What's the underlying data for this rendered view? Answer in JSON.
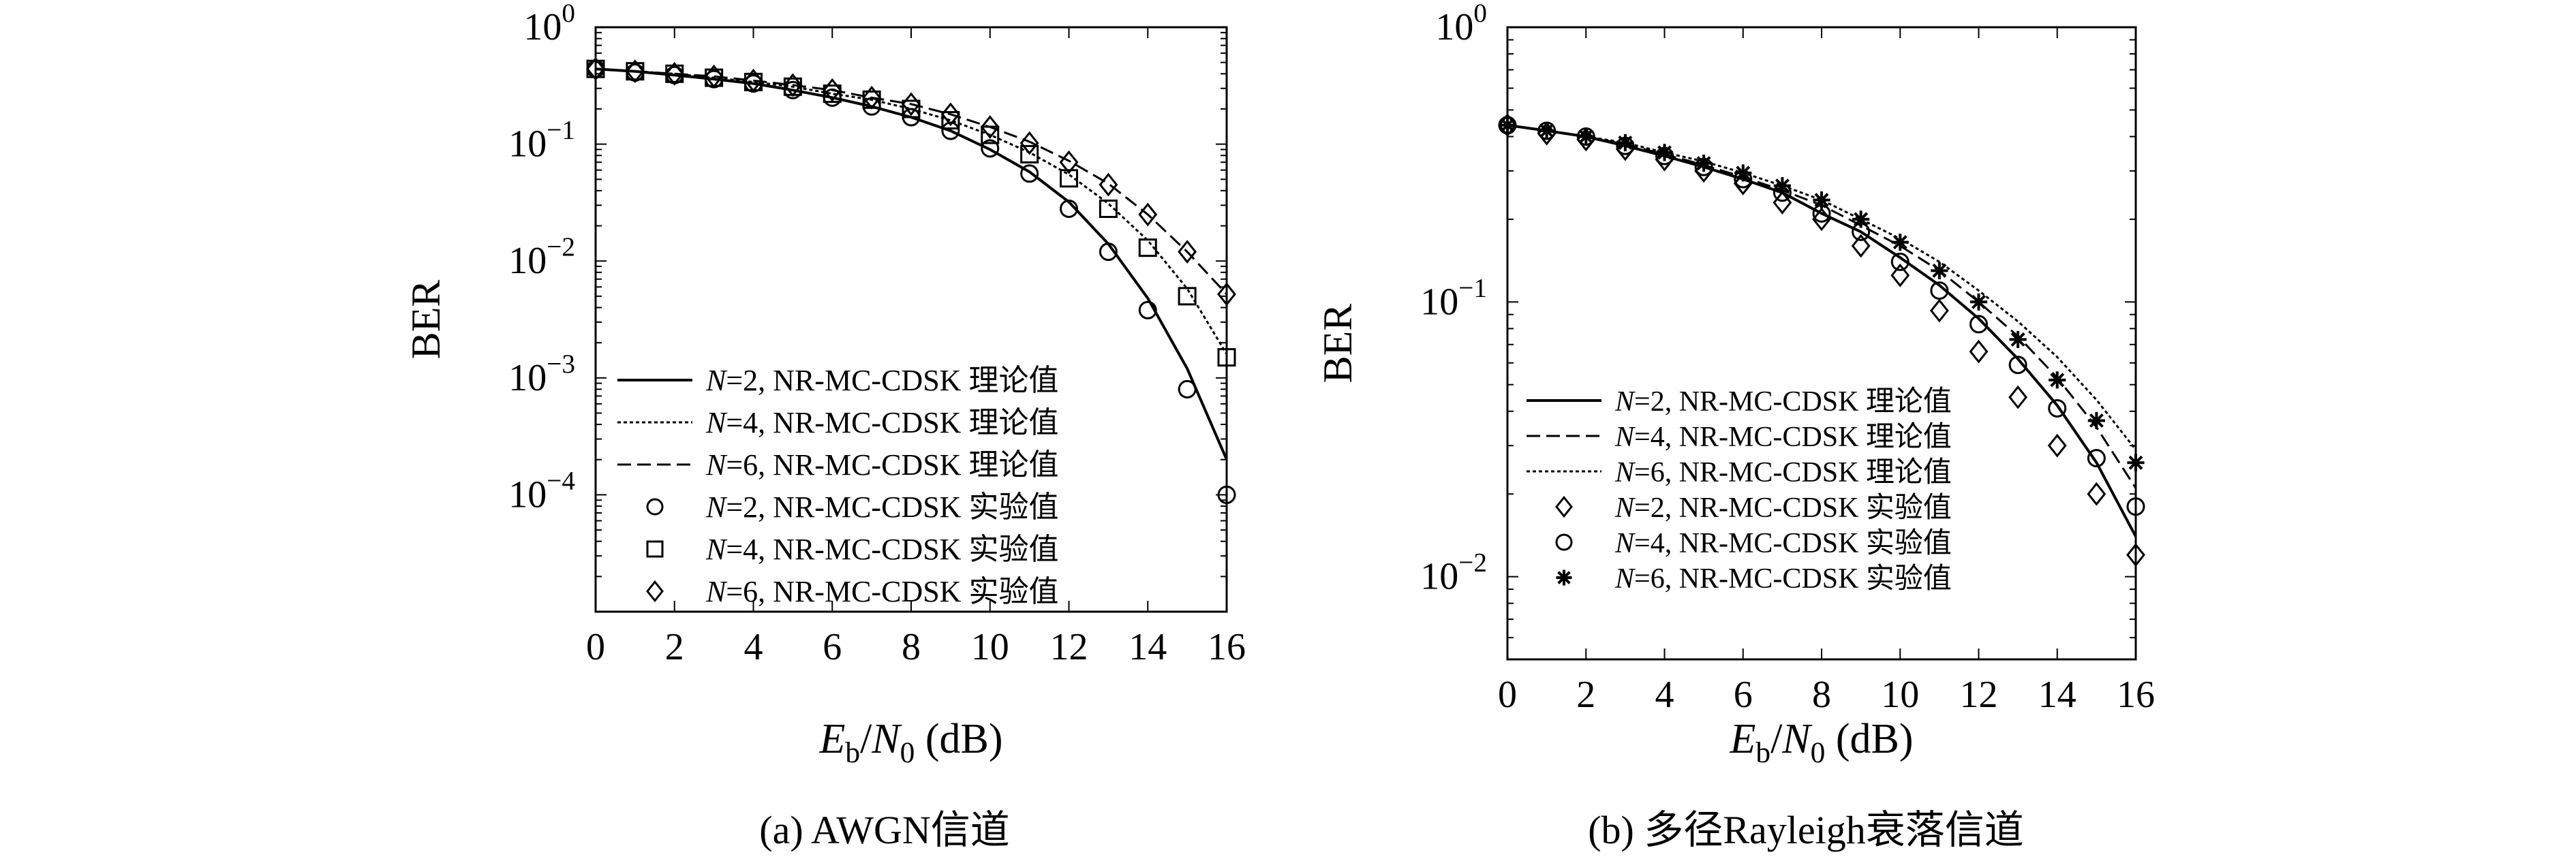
{
  "chart_data": [
    {
      "type": "line",
      "caption": "(a) AWGN信道",
      "ylabel": "BER",
      "xlabel": "Eb/N0 (dB)",
      "xlabel_parts": {
        "E": "E",
        "b": "b",
        "N": "N",
        "zero": "0",
        "unit": " (dB)"
      },
      "xlim": [
        0,
        16
      ],
      "ylim": [
        1e-05,
        1
      ],
      "yscale": "log",
      "x_ticks": [
        0,
        2,
        4,
        6,
        8,
        10,
        12,
        14,
        16
      ],
      "y_tick_labels": [
        {
          "value": 1,
          "base": "10",
          "exp": "0"
        },
        {
          "value": 0.1,
          "base": "10",
          "exp": "−1"
        },
        {
          "value": 0.01,
          "base": "10",
          "exp": "−2"
        },
        {
          "value": 0.001,
          "base": "10",
          "exp": "−3"
        },
        {
          "value": 0.0001,
          "base": "10",
          "exp": "−4"
        }
      ],
      "grid": false,
      "legend_position": "bottom-left",
      "series": [
        {
          "name": "N=2, NR-MC-CDSK 理论值",
          "style": "solid",
          "marker": "none",
          "x": [
            0,
            1,
            2,
            3,
            4,
            5,
            6,
            7,
            8,
            9,
            10,
            11,
            12,
            13,
            14,
            15,
            16
          ],
          "y": [
            0.44,
            0.42,
            0.39,
            0.36,
            0.33,
            0.29,
            0.25,
            0.21,
            0.17,
            0.13,
            0.09,
            0.058,
            0.032,
            0.014,
            0.0048,
            0.0012,
            0.0002
          ]
        },
        {
          "name": "N=4, NR-MC-CDSK 理论值",
          "style": "dotted",
          "marker": "none",
          "x": [
            0,
            1,
            2,
            3,
            4,
            5,
            6,
            7,
            8,
            9,
            10,
            11,
            12,
            13,
            14,
            15,
            16
          ],
          "y": [
            0.44,
            0.42,
            0.4,
            0.37,
            0.34,
            0.31,
            0.27,
            0.24,
            0.2,
            0.16,
            0.12,
            0.085,
            0.055,
            0.031,
            0.015,
            0.0058,
            0.0016
          ]
        },
        {
          "name": "N=6, NR-MC-CDSK 理论值",
          "style": "dashed",
          "marker": "none",
          "x": [
            0,
            1,
            2,
            3,
            4,
            5,
            6,
            7,
            8,
            9,
            10,
            11,
            12,
            13,
            14,
            15,
            16
          ],
          "y": [
            0.44,
            0.42,
            0.4,
            0.38,
            0.35,
            0.32,
            0.29,
            0.25,
            0.22,
            0.18,
            0.14,
            0.105,
            0.072,
            0.046,
            0.025,
            0.012,
            0.0052
          ]
        },
        {
          "name": "N=2, NR-MC-CDSK 实验值",
          "style": "none",
          "marker": "circle",
          "x": [
            0,
            1,
            2,
            3,
            4,
            5,
            6,
            7,
            8,
            9,
            10,
            11,
            12,
            13,
            14,
            15,
            16
          ],
          "y": [
            0.44,
            0.41,
            0.39,
            0.36,
            0.33,
            0.29,
            0.25,
            0.21,
            0.17,
            0.13,
            0.092,
            0.056,
            0.028,
            0.012,
            0.0038,
            0.0008,
            0.0001
          ]
        },
        {
          "name": "N=4, NR-MC-CDSK 实验值",
          "style": "none",
          "marker": "square",
          "x": [
            0,
            1,
            2,
            3,
            4,
            5,
            6,
            7,
            8,
            9,
            10,
            11,
            12,
            13,
            14,
            15,
            16
          ],
          "y": [
            0.44,
            0.42,
            0.4,
            0.37,
            0.34,
            0.31,
            0.27,
            0.24,
            0.2,
            0.16,
            0.12,
            0.082,
            0.051,
            0.028,
            0.013,
            0.005,
            0.0015
          ]
        },
        {
          "name": "N=6, NR-MC-CDSK 实验值",
          "style": "none",
          "marker": "diamond",
          "x": [
            0,
            1,
            2,
            3,
            4,
            5,
            6,
            7,
            8,
            9,
            10,
            11,
            12,
            13,
            14,
            15,
            16
          ],
          "y": [
            0.44,
            0.42,
            0.4,
            0.38,
            0.35,
            0.32,
            0.29,
            0.25,
            0.22,
            0.18,
            0.14,
            0.102,
            0.07,
            0.045,
            0.025,
            0.012,
            0.0052
          ]
        }
      ]
    },
    {
      "type": "line",
      "caption": "(b) 多径Rayleigh衰落信道",
      "ylabel": "BER",
      "xlabel": "Eb/N0 (dB)",
      "xlabel_parts": {
        "E": "E",
        "b": "b",
        "N": "N",
        "zero": "0",
        "unit": " (dB)"
      },
      "xlim": [
        0,
        16
      ],
      "ylim": [
        0.005,
        1
      ],
      "yscale": "log",
      "x_ticks": [
        0,
        2,
        4,
        6,
        8,
        10,
        12,
        14,
        16
      ],
      "y_tick_labels": [
        {
          "value": 1,
          "base": "10",
          "exp": "0"
        },
        {
          "value": 0.1,
          "base": "10",
          "exp": "−1"
        },
        {
          "value": 0.01,
          "base": "10",
          "exp": "−2"
        }
      ],
      "grid": false,
      "legend_position": "bottom-left",
      "series": [
        {
          "name": "N=2, NR-MC-CDSK 理论值",
          "style": "solid",
          "marker": "none",
          "x": [
            0,
            1,
            2,
            3,
            4,
            5,
            6,
            7,
            8,
            9,
            10,
            11,
            12,
            13,
            14,
            15,
            16
          ],
          "y": [
            0.44,
            0.42,
            0.4,
            0.37,
            0.34,
            0.31,
            0.28,
            0.25,
            0.21,
            0.18,
            0.145,
            0.115,
            0.087,
            0.062,
            0.042,
            0.026,
            0.014
          ]
        },
        {
          "name": "N=4, NR-MC-CDSK 理论值",
          "style": "dashed",
          "marker": "none",
          "x": [
            0,
            1,
            2,
            3,
            4,
            5,
            6,
            7,
            8,
            9,
            10,
            11,
            12,
            13,
            14,
            15,
            16
          ],
          "y": [
            0.44,
            0.42,
            0.4,
            0.375,
            0.345,
            0.315,
            0.285,
            0.255,
            0.225,
            0.19,
            0.16,
            0.13,
            0.1,
            0.075,
            0.053,
            0.035,
            0.021
          ]
        },
        {
          "name": "N=6, NR-MC-CDSK 理论值",
          "style": "dotted",
          "marker": "none",
          "x": [
            0,
            1,
            2,
            3,
            4,
            5,
            6,
            7,
            8,
            9,
            10,
            11,
            12,
            13,
            14,
            15,
            16
          ],
          "y": [
            0.44,
            0.42,
            0.4,
            0.38,
            0.35,
            0.325,
            0.295,
            0.265,
            0.235,
            0.2,
            0.17,
            0.14,
            0.11,
            0.085,
            0.063,
            0.044,
            0.029
          ]
        },
        {
          "name": "N=2, NR-MC-CDSK 实验值",
          "style": "none",
          "marker": "diamond",
          "x": [
            0,
            1,
            2,
            3,
            4,
            5,
            6,
            7,
            8,
            9,
            10,
            11,
            12,
            13,
            14,
            15,
            16
          ],
          "y": [
            0.44,
            0.41,
            0.39,
            0.36,
            0.33,
            0.3,
            0.27,
            0.23,
            0.2,
            0.16,
            0.125,
            0.093,
            0.066,
            0.045,
            0.03,
            0.02,
            0.012
          ]
        },
        {
          "name": "N=4, NR-MC-CDSK 实验值",
          "style": "none",
          "marker": "circle",
          "x": [
            0,
            1,
            2,
            3,
            4,
            5,
            6,
            7,
            8,
            9,
            10,
            11,
            12,
            13,
            14,
            15,
            16
          ],
          "y": [
            0.44,
            0.42,
            0.4,
            0.37,
            0.34,
            0.31,
            0.28,
            0.25,
            0.21,
            0.18,
            0.14,
            0.11,
            0.083,
            0.059,
            0.041,
            0.027,
            0.018
          ]
        },
        {
          "name": "N=6, NR-MC-CDSK 实验值",
          "style": "none",
          "marker": "star",
          "x": [
            0,
            1,
            2,
            3,
            4,
            5,
            6,
            7,
            8,
            9,
            10,
            11,
            12,
            13,
            14,
            15,
            16
          ],
          "y": [
            0.44,
            0.42,
            0.4,
            0.38,
            0.35,
            0.32,
            0.295,
            0.265,
            0.235,
            0.2,
            0.165,
            0.13,
            0.1,
            0.073,
            0.052,
            0.037,
            0.026
          ]
        }
      ]
    }
  ]
}
